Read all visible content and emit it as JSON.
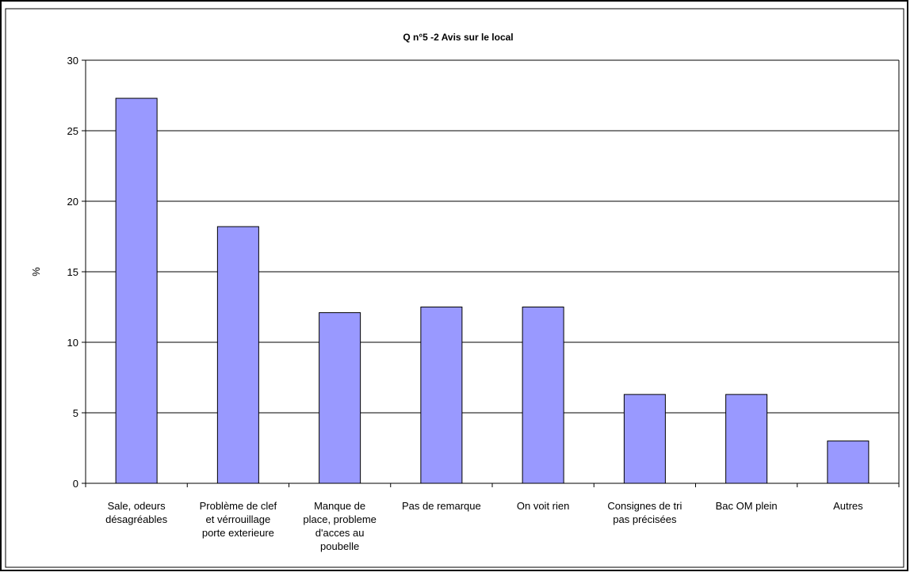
{
  "chart_data": {
    "type": "bar",
    "title": "Q n°5 -2  Avis sur le local",
    "xlabel": "",
    "ylabel": "%",
    "ylim": [
      0,
      30
    ],
    "yticks": [
      0,
      5,
      10,
      15,
      20,
      25,
      30
    ],
    "grid": true,
    "legend": "none",
    "bar_color": "#9999ff",
    "categories": [
      [
        "Sale, odeurs",
        "désagréables"
      ],
      [
        "Problème de clef",
        "et vérrouillage",
        "porte exterieure"
      ],
      [
        "Manque de",
        "place, probleme",
        "d'acces au",
        "poubelle"
      ],
      [
        "Pas de remarque"
      ],
      [
        "On voit rien"
      ],
      [
        "Consignes de tri",
        "pas précisées"
      ],
      [
        "Bac OM plein"
      ],
      [
        "Autres"
      ]
    ],
    "values": [
      27.3,
      18.2,
      12.1,
      12.5,
      12.5,
      6.3,
      6.3,
      3.0
    ]
  }
}
